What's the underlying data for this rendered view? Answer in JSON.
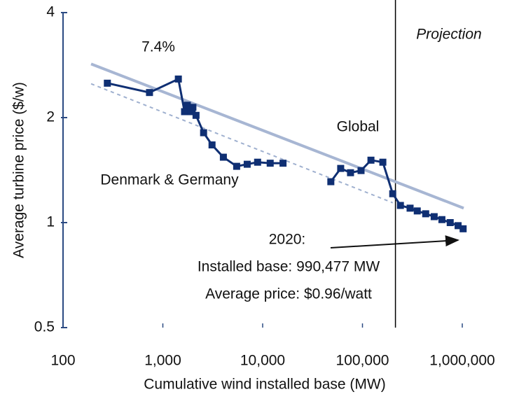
{
  "chart_data": {
    "type": "line",
    "xlabel": "Cumulative wind installed base (MW)",
    "ylabel": "Average turbine price ($/w)",
    "xscale": "log",
    "yscale": "log",
    "xlim": [
      100,
      1000000
    ],
    "ylim": [
      0.5,
      4
    ],
    "xticks": [
      100,
      {
        "value": 1000,
        "label": "1,000"
      },
      {
        "value": 10000,
        "label": "10,000"
      },
      {
        "value": 100000,
        "label": "100,000"
      },
      {
        "value": 1000000,
        "label": "1,000,000"
      }
    ],
    "yticks": [
      0.5,
      1,
      2,
      4
    ],
    "series": [
      {
        "name": "Denmark & Germany",
        "color": "#0f2f73",
        "x": [
          278,
          735,
          1430,
          1650,
          1760,
          1900,
          2000,
          2150,
          2560,
          3110,
          4040,
          5490,
          7000,
          8900,
          11900,
          16000
        ],
        "values": [
          2.51,
          2.36,
          2.58,
          2.08,
          2.17,
          2.08,
          2.14,
          2.03,
          1.81,
          1.67,
          1.54,
          1.45,
          1.47,
          1.49,
          1.48,
          1.48
        ]
      },
      {
        "name": "Global",
        "color": "#0f2f73",
        "x": [
          48200,
          60500,
          75900,
          96800,
          121600,
          160000,
          201000,
          240000,
          300000,
          354000,
          430000,
          523000,
          625000,
          757000,
          908000,
          1020000
        ],
        "values": [
          1.31,
          1.43,
          1.39,
          1.41,
          1.51,
          1.49,
          1.21,
          1.12,
          1.1,
          1.08,
          1.06,
          1.04,
          1.02,
          1.0,
          0.98,
          0.96
        ]
      }
    ],
    "trend_lines": [
      {
        "color": "#a7b6d3",
        "style": "solid",
        "x": [
          191,
          1033000
        ],
        "values": [
          2.85,
          1.1
        ]
      },
      {
        "color": "#9fb0cf",
        "style": "dashed",
        "x": [
          191,
          201000
        ],
        "values": [
          2.5,
          1.14
        ]
      }
    ],
    "projection_start": 214000,
    "annotations": {
      "rate": "7.4%",
      "projection": "Projection",
      "year": "2020:",
      "installed": "Installed base: 990,477 MW",
      "price": "Average price: $0.96/watt"
    }
  }
}
